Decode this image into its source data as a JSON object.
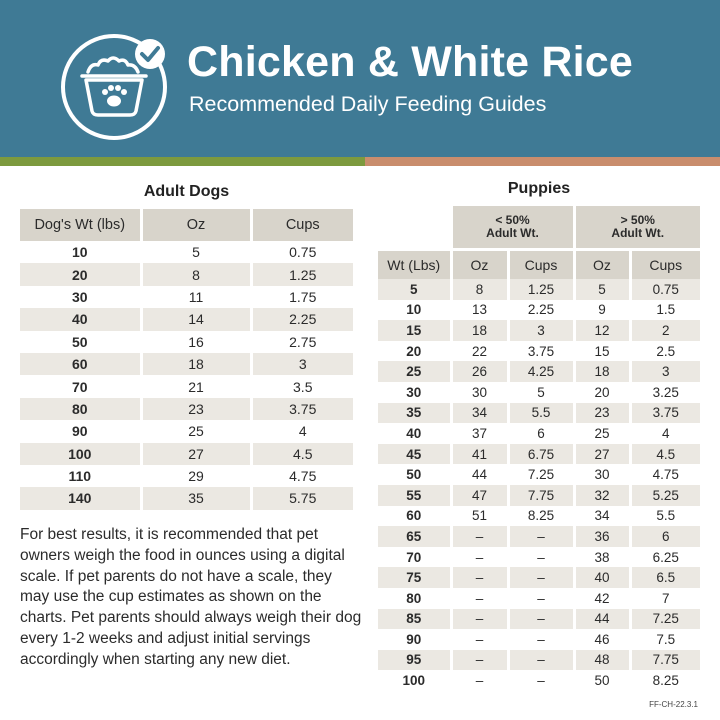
{
  "header": {
    "title": "Chicken & White Rice",
    "subtitle": "Recommended Daily Feeding Guides"
  },
  "colors": {
    "header_bg": "#3f7a95",
    "stripe_left": "#7d9a3e",
    "stripe_right": "#c98d6d",
    "table_header": "#d8d4cb",
    "row_alt": "#ebe8e2"
  },
  "icons": {
    "logo": "dog-food-bowl-check-icon"
  },
  "adult": {
    "title": "Adult Dogs",
    "headers": [
      "Dog's Wt (lbs)",
      "Oz",
      "Cups"
    ],
    "rows": [
      [
        "10",
        "5",
        "0.75"
      ],
      [
        "20",
        "8",
        "1.25"
      ],
      [
        "30",
        "11",
        "1.75"
      ],
      [
        "40",
        "14",
        "2.25"
      ],
      [
        "50",
        "16",
        "2.75"
      ],
      [
        "60",
        "18",
        "3"
      ],
      [
        "70",
        "21",
        "3.5"
      ],
      [
        "80",
        "23",
        "3.75"
      ],
      [
        "90",
        "25",
        "4"
      ],
      [
        "100",
        "27",
        "4.5"
      ],
      [
        "110",
        "29",
        "4.75"
      ],
      [
        "140",
        "35",
        "5.75"
      ]
    ]
  },
  "puppies": {
    "title": "Puppies",
    "group_headers": [
      {
        "line1": "< 50%",
        "line2": "Adult Wt."
      },
      {
        "line1": "> 50%",
        "line2": "Adult Wt."
      }
    ],
    "headers": [
      "Wt (Lbs)",
      "Oz",
      "Cups",
      "Oz",
      "Cups"
    ],
    "rows": [
      [
        "5",
        "8",
        "1.25",
        "5",
        "0.75"
      ],
      [
        "10",
        "13",
        "2.25",
        "9",
        "1.5"
      ],
      [
        "15",
        "18",
        "3",
        "12",
        "2"
      ],
      [
        "20",
        "22",
        "3.75",
        "15",
        "2.5"
      ],
      [
        "25",
        "26",
        "4.25",
        "18",
        "3"
      ],
      [
        "30",
        "30",
        "5",
        "20",
        "3.25"
      ],
      [
        "35",
        "34",
        "5.5",
        "23",
        "3.75"
      ],
      [
        "40",
        "37",
        "6",
        "25",
        "4"
      ],
      [
        "45",
        "41",
        "6.75",
        "27",
        "4.5"
      ],
      [
        "50",
        "44",
        "7.25",
        "30",
        "4.75"
      ],
      [
        "55",
        "47",
        "7.75",
        "32",
        "5.25"
      ],
      [
        "60",
        "51",
        "8.25",
        "34",
        "5.5"
      ],
      [
        "65",
        "–",
        "–",
        "36",
        "6"
      ],
      [
        "70",
        "–",
        "–",
        "38",
        "6.25"
      ],
      [
        "75",
        "–",
        "–",
        "40",
        "6.5"
      ],
      [
        "80",
        "–",
        "–",
        "42",
        "7"
      ],
      [
        "85",
        "–",
        "–",
        "44",
        "7.25"
      ],
      [
        "90",
        "–",
        "–",
        "46",
        "7.5"
      ],
      [
        "95",
        "–",
        "–",
        "48",
        "7.75"
      ],
      [
        "100",
        "–",
        "–",
        "50",
        "8.25"
      ]
    ]
  },
  "note": "For best results, it is recommended that pet owners weigh the food in ounces using a digital scale. If pet parents do not have a scale, they may use the cup estimates as shown on the charts. Pet parents should always weigh their dog every 1-2 weeks and adjust initial servings accordingly when starting any new diet.",
  "code": "FF-CH-22.3.1"
}
